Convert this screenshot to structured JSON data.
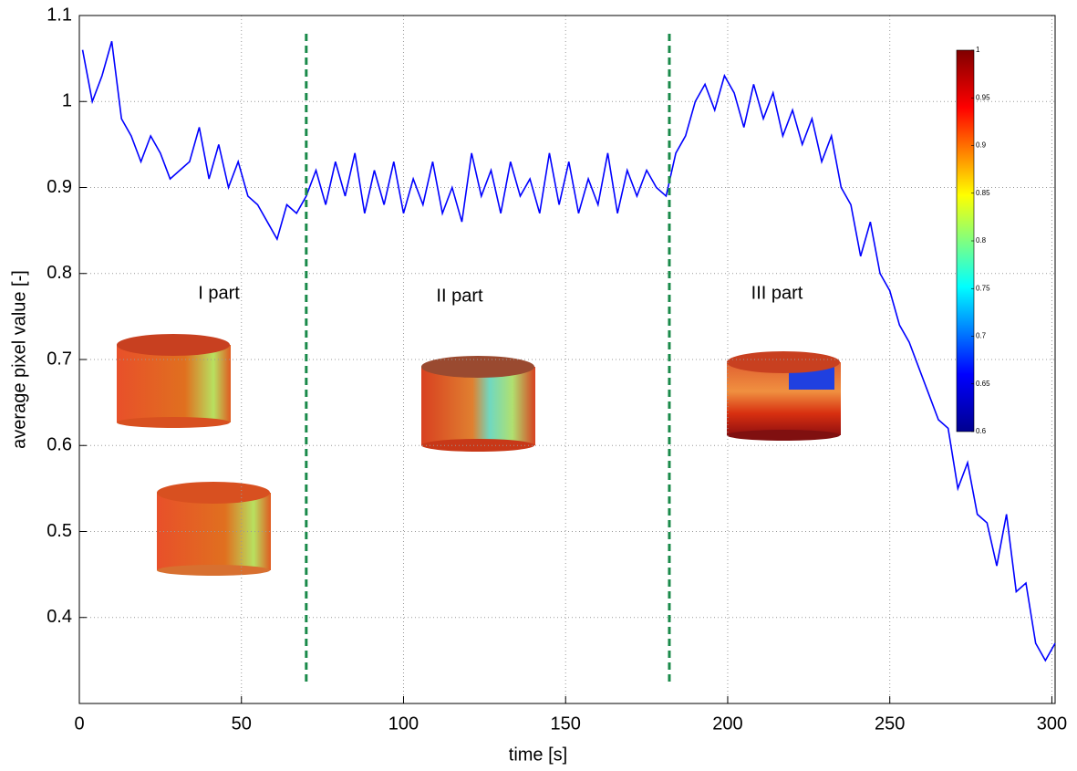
{
  "chart_data": {
    "type": "line",
    "xlabel": "time [s]",
    "ylabel": "average pixel value [-]",
    "x": [
      1,
      4,
      7,
      10,
      13,
      16,
      19,
      22,
      25,
      28,
      31,
      34,
      37,
      40,
      43,
      46,
      49,
      52,
      55,
      58,
      61,
      64,
      67,
      70,
      73,
      76,
      79,
      82,
      85,
      88,
      91,
      94,
      97,
      100,
      103,
      106,
      109,
      112,
      115,
      118,
      121,
      124,
      127,
      130,
      133,
      136,
      139,
      142,
      145,
      148,
      151,
      154,
      157,
      160,
      163,
      166,
      169,
      172,
      175,
      178,
      181,
      184,
      187,
      190,
      193,
      196,
      199,
      202,
      205,
      208,
      211,
      214,
      217,
      220,
      223,
      226,
      229,
      232,
      235,
      238,
      241,
      244,
      247,
      250,
      253,
      256,
      259,
      262,
      265,
      268,
      271,
      274,
      277,
      280,
      283,
      286,
      289,
      292,
      295,
      298,
      301
    ],
    "series": [
      {
        "color": "#0000ff",
        "values": [
          1.06,
          1.0,
          1.03,
          1.07,
          0.98,
          0.96,
          0.93,
          0.96,
          0.94,
          0.91,
          0.92,
          0.93,
          0.97,
          0.91,
          0.95,
          0.9,
          0.93,
          0.89,
          0.88,
          0.86,
          0.84,
          0.88,
          0.87,
          0.89,
          0.92,
          0.88,
          0.93,
          0.89,
          0.94,
          0.87,
          0.92,
          0.88,
          0.93,
          0.87,
          0.91,
          0.88,
          0.93,
          0.87,
          0.9,
          0.86,
          0.94,
          0.89,
          0.92,
          0.87,
          0.93,
          0.89,
          0.91,
          0.87,
          0.94,
          0.88,
          0.93,
          0.87,
          0.91,
          0.88,
          0.94,
          0.87,
          0.92,
          0.89,
          0.92,
          0.9,
          0.89,
          0.94,
          0.96,
          1.0,
          1.02,
          0.99,
          1.03,
          1.01,
          0.97,
          1.02,
          0.98,
          1.01,
          0.96,
          0.99,
          0.95,
          0.98,
          0.93,
          0.96,
          0.9,
          0.88,
          0.82,
          0.86,
          0.8,
          0.78,
          0.74,
          0.72,
          0.69,
          0.66,
          0.63,
          0.62,
          0.55,
          0.58,
          0.52,
          0.51,
          0.46,
          0.52,
          0.43,
          0.44,
          0.37,
          0.35,
          0.37
        ]
      }
    ],
    "xlim": [
      0,
      301
    ],
    "ylim": [
      0.3,
      1.1
    ],
    "xticks": [
      0,
      50,
      100,
      150,
      200,
      250,
      300
    ],
    "yticks": [
      0.4,
      0.5,
      0.6,
      0.7,
      0.8,
      0.9,
      1,
      1.1
    ],
    "grid": true,
    "vlines": {
      "color": "#1a8a4a",
      "x": [
        70,
        182
      ]
    },
    "annotations": [
      "I part",
      "II part",
      "III part"
    ],
    "colorbar": {
      "lim": [
        0.6,
        1
      ],
      "ticks": [
        0.6,
        0.65,
        0.7,
        0.75,
        0.8,
        0.85,
        0.9,
        0.95,
        1
      ]
    }
  }
}
